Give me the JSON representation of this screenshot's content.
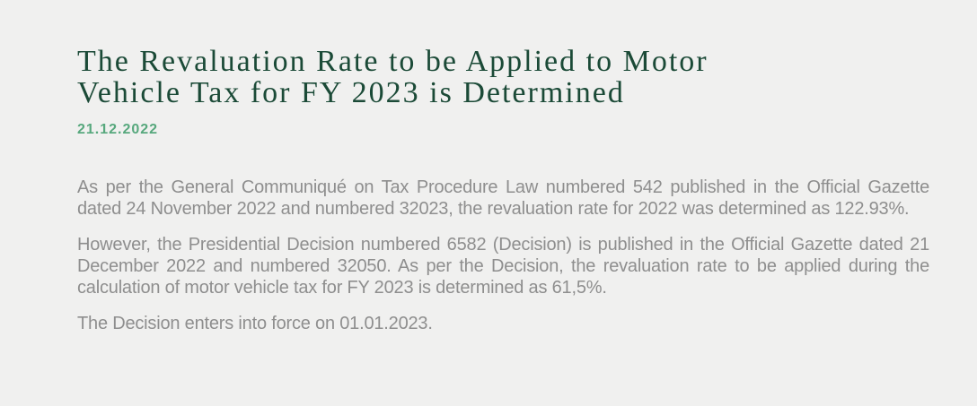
{
  "page": {
    "background_color": "#f0f0ef"
  },
  "article": {
    "title": "The Revaluation Rate to be Applied to Motor\nVehicle Tax for FY 2023 is Determined",
    "title_color": "#1b4a37",
    "date": "21.12.2022",
    "date_color": "#57a87d",
    "body_text_color": "#8e8e8e",
    "paragraphs": [
      "As per the General Communiqué on Tax Procedure Law numbered 542 published in the Official Gazette dated 24 November 2022 and numbered 32023, the revaluation rate for 2022 was determined as 122.93%.",
      "However, the Presidential Decision numbered 6582 (Decision) is published in the Official Gazette dated 21 December 2022 and numbered 32050. As per the Decision, the revaluation rate to be applied during the calculation of motor vehicle tax for FY 2023 is determined as 61,5%.",
      "The Decision enters into force on 01.01.2023."
    ]
  }
}
